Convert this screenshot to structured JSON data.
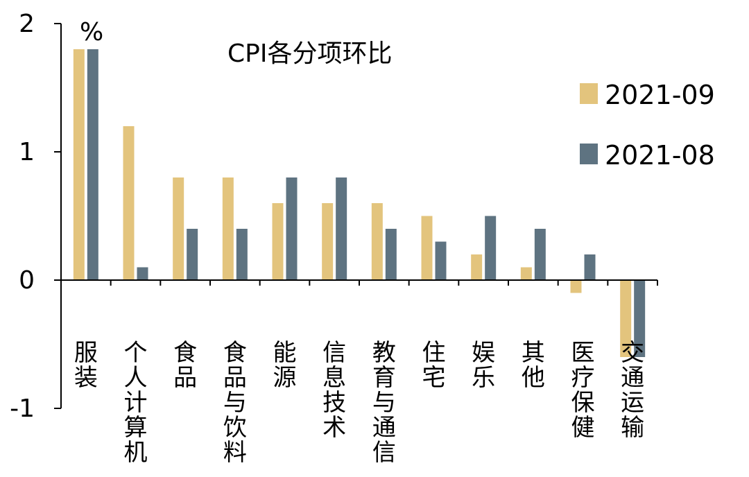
{
  "chart_data": {
    "type": "bar",
    "title": "CPI各分项环比",
    "unit": "%",
    "xlabel": "",
    "ylabel": "",
    "ylim": [
      -1,
      2
    ],
    "yticks": [
      2,
      1,
      0,
      -1
    ],
    "grid": false,
    "legend_position": "right",
    "categories": [
      "服装",
      "个人计算机",
      "食品",
      "食品与饮料",
      "能源",
      "信息技术",
      "教育与通信",
      "住宅",
      "娱乐",
      "其他",
      "医疗保健",
      "交通运输"
    ],
    "series": [
      {
        "name": "2021-09",
        "color": "#E3C47D",
        "values": [
          1.8,
          1.2,
          0.8,
          0.8,
          0.6,
          0.6,
          0.6,
          0.5,
          0.2,
          0.1,
          -0.1,
          -0.6
        ]
      },
      {
        "name": "2021-08",
        "color": "#5E7381",
        "values": [
          1.8,
          0.1,
          0.4,
          0.4,
          0.8,
          0.8,
          0.4,
          0.3,
          0.5,
          0.4,
          0.2,
          -0.6
        ]
      }
    ]
  }
}
